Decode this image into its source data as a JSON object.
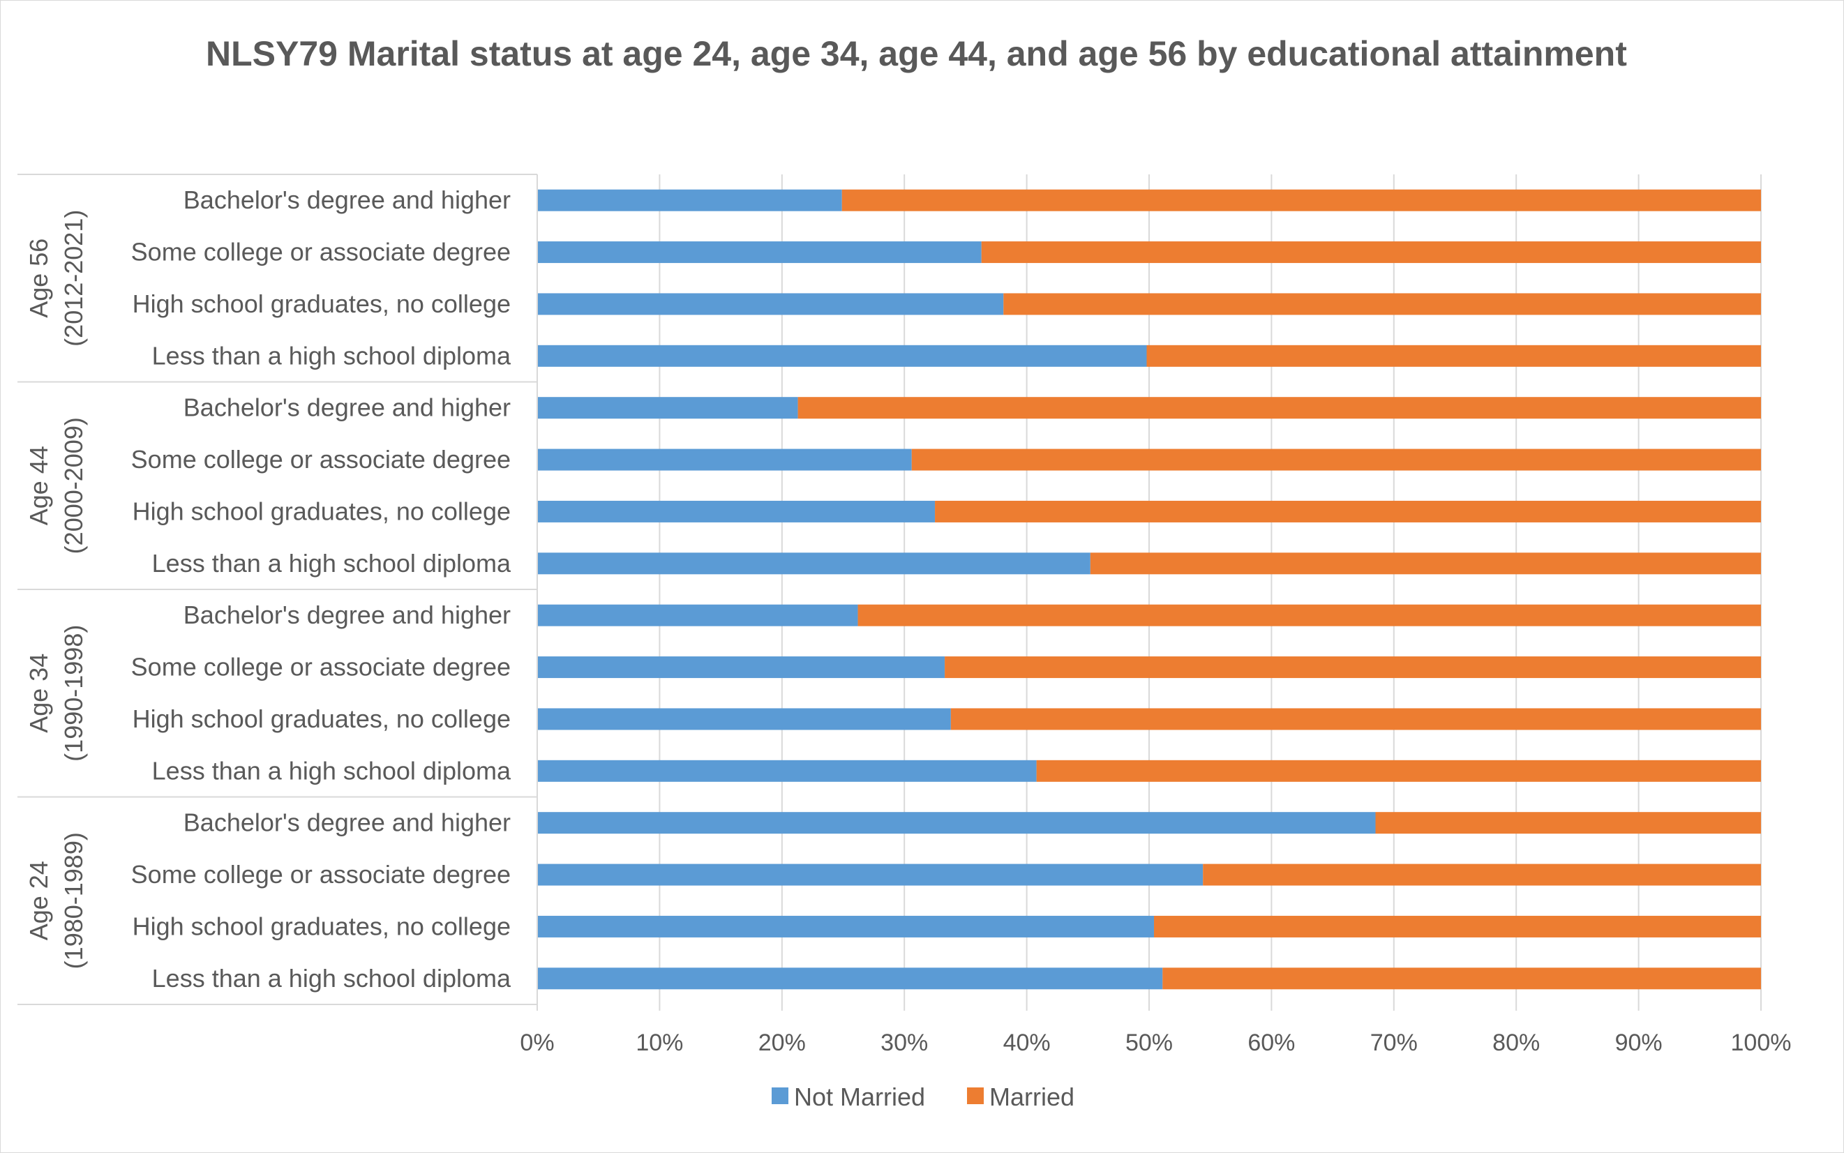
{
  "chart_data": {
    "type": "bar",
    "orientation": "horizontal",
    "stacked": "percent",
    "title": "NLSY79 Marital status at age 24, age 34, age 44, and age 56 by educational attainment",
    "groups": [
      {
        "label_line1": "Age 56",
        "label_line2": "(2012-2021)",
        "categories": [
          "Bachelor's degree and higher",
          "Some college or associate degree",
          "High school graduates, no college",
          "Less than a high school diploma"
        ],
        "not_married": [
          24.9,
          36.3,
          38.1,
          49.8
        ],
        "married": [
          75.1,
          63.7,
          61.9,
          50.2
        ]
      },
      {
        "label_line1": "Age 44",
        "label_line2": "(2000-2009)",
        "categories": [
          "Bachelor's degree and higher",
          "Some college or associate degree",
          "High school graduates, no college",
          "Less than a high school diploma"
        ],
        "not_married": [
          21.3,
          30.6,
          32.5,
          45.2
        ],
        "married": [
          78.7,
          69.4,
          67.5,
          54.8
        ]
      },
      {
        "label_line1": "Age 34",
        "label_line2": "(1990-1998)",
        "categories": [
          "Bachelor's degree and higher",
          "Some college or associate degree",
          "High school graduates, no college",
          "Less than a high school diploma"
        ],
        "not_married": [
          26.2,
          33.3,
          33.8,
          40.8
        ],
        "married": [
          73.8,
          66.7,
          66.2,
          59.2
        ]
      },
      {
        "label_line1": "Age 24",
        "label_line2": "(1980-1989)",
        "categories": [
          "Bachelor's degree and higher",
          "Some college or associate degree",
          "High school graduates, no college",
          "Less than a high school diploma"
        ],
        "not_married": [
          68.5,
          54.4,
          50.4,
          51.1
        ],
        "married": [
          31.5,
          45.6,
          49.6,
          48.9
        ]
      }
    ],
    "x_ticks": [
      "0%",
      "10%",
      "20%",
      "30%",
      "40%",
      "50%",
      "60%",
      "70%",
      "80%",
      "90%",
      "100%"
    ],
    "xlim": [
      0,
      100
    ],
    "grid": true,
    "legend": {
      "placement": "bottom",
      "entries": [
        {
          "name": "Not Married",
          "color": "#5b9bd5"
        },
        {
          "name": "Married",
          "color": "#ed7d31"
        }
      ]
    }
  }
}
